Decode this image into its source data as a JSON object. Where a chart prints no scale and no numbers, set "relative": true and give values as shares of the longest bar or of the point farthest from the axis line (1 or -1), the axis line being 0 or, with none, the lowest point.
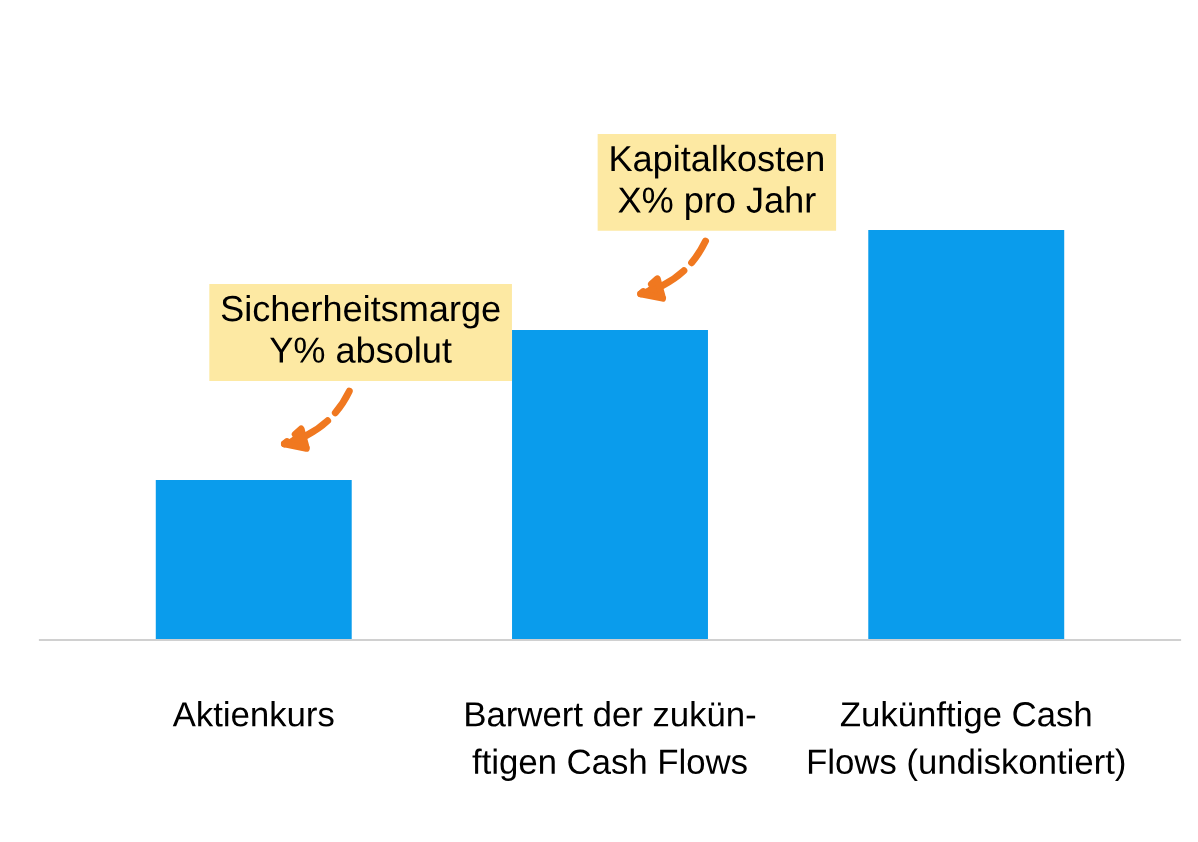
{
  "chart_data": {
    "type": "bar",
    "relative": true,
    "categories": [
      "Aktienkurs",
      "Barwert der zukün-\nftigen Cash Flows",
      "Zukünftige Cash\nFlows (undiskontiert)"
    ],
    "values": [
      0.39,
      0.756,
      1
    ],
    "color": "#0a9cec",
    "grid": false,
    "legend": false,
    "annotations": [
      "Sicherheitsmarge\nY% absolut",
      "Kapitalkosten\nX% pro Jahr"
    ]
  }
}
